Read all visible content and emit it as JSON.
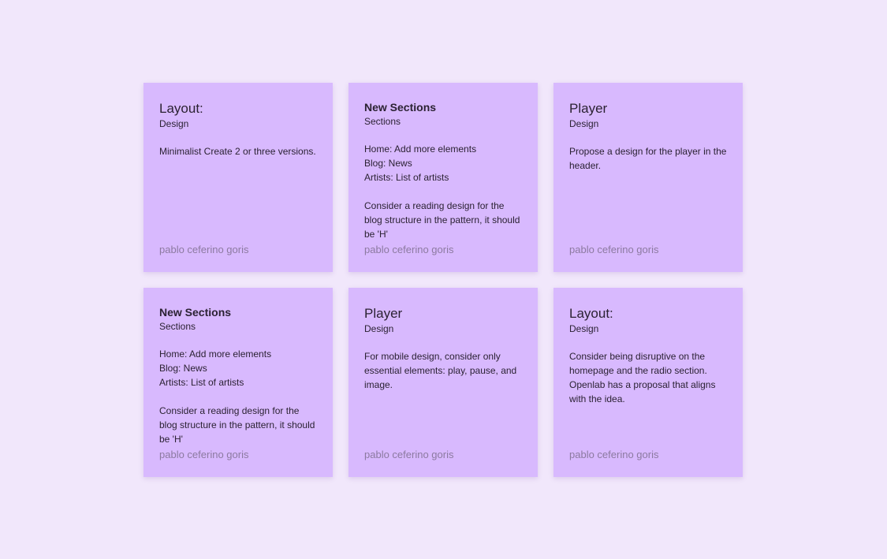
{
  "colors": {
    "background": "#f1e7fb",
    "card": "#d8b9fe",
    "author": "#8c7aa0"
  },
  "cards": [
    {
      "title": "Layout:",
      "subtitle": "Design",
      "body": "Minimalist Create 2 or three versions.",
      "author": "pablo ceferino goris",
      "style": "large"
    },
    {
      "title": "New Sections",
      "subtitle": "Sections",
      "body": "Home: Add more elements\nBlog: News\nArtists: List of artists\n\nConsider a reading design for the blog structure in the pattern, it should be 'H'",
      "author": "pablo ceferino goris",
      "style": "small"
    },
    {
      "title": "Player",
      "subtitle": "Design",
      "body": "Propose a design for the player in the header.",
      "author": "pablo ceferino goris",
      "style": "large"
    },
    {
      "title": "New Sections",
      "subtitle": "Sections",
      "body": "Home: Add more elements\nBlog: News\nArtists: List of artists\n\nConsider a reading design for the blog structure in the pattern, it should be 'H'",
      "author": "pablo ceferino goris",
      "style": "small"
    },
    {
      "title": "Player",
      "subtitle": "Design",
      "body": "For mobile design, consider only essential elements: play, pause, and image.",
      "author": "pablo ceferino goris",
      "style": "large"
    },
    {
      "title": "Layout:",
      "subtitle": "Design",
      "body": "Consider being disruptive on the homepage and the radio section. Openlab has a proposal that aligns with the idea.",
      "author": "pablo ceferino goris",
      "style": "large"
    }
  ]
}
